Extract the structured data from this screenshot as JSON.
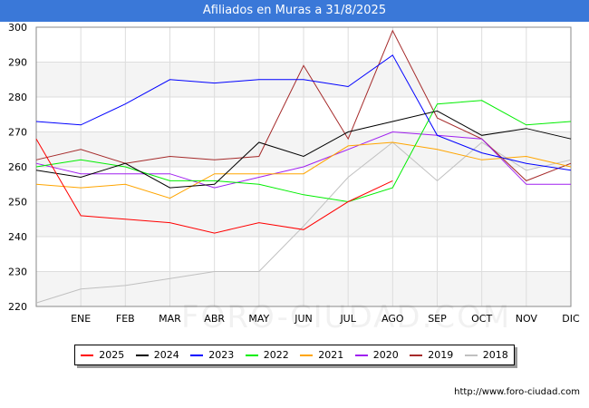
{
  "chart_data": {
    "type": "line",
    "title": "Afiliados en Muras a 31/8/2025",
    "categories": [
      "",
      "ENE",
      "FEB",
      "MAR",
      "ABR",
      "MAY",
      "JUN",
      "JUL",
      "AGO",
      "SEP",
      "OCT",
      "NOV",
      "DIC"
    ],
    "ylim": [
      220,
      300
    ],
    "yticks": [
      220,
      230,
      240,
      250,
      260,
      270,
      280,
      290,
      300
    ],
    "grid": true,
    "legend_position": "bottom",
    "series": [
      {
        "name": "2025",
        "color": "#ff0000",
        "values": [
          268,
          246,
          245,
          244,
          241,
          244,
          242,
          250,
          256,
          null,
          null,
          null,
          null
        ]
      },
      {
        "name": "2024",
        "color": "#000000",
        "values": [
          259,
          257,
          261,
          254,
          255,
          267,
          263,
          270,
          273,
          276,
          269,
          271,
          268
        ]
      },
      {
        "name": "2023",
        "color": "#0000ff",
        "values": [
          273,
          272,
          278,
          285,
          284,
          285,
          285,
          283,
          292,
          269,
          264,
          261,
          259
        ]
      },
      {
        "name": "2022",
        "color": "#00ee00",
        "values": [
          260,
          262,
          260,
          256,
          256,
          255,
          252,
          250,
          254,
          278,
          279,
          272,
          273
        ]
      },
      {
        "name": "2021",
        "color": "#ffa500",
        "values": [
          255,
          254,
          255,
          251,
          258,
          258,
          258,
          266,
          267,
          265,
          262,
          263,
          260
        ]
      },
      {
        "name": "2020",
        "color": "#a020f0",
        "values": [
          261,
          258,
          258,
          258,
          254,
          257,
          260,
          265,
          270,
          269,
          268,
          255,
          255
        ]
      },
      {
        "name": "2019",
        "color": "#a52a2a",
        "values": [
          262,
          265,
          261,
          263,
          262,
          263,
          289,
          268,
          299,
          274,
          268,
          256,
          261
        ]
      },
      {
        "name": "2018",
        "color": "#c0c0c0",
        "values": [
          221,
          225,
          226,
          228,
          230,
          230,
          243,
          257,
          267,
          256,
          267,
          259,
          262
        ]
      }
    ]
  },
  "footer": {
    "source": "http://www.foro-ciudad.com",
    "watermark": "FORO-CIUDAD.COM"
  }
}
